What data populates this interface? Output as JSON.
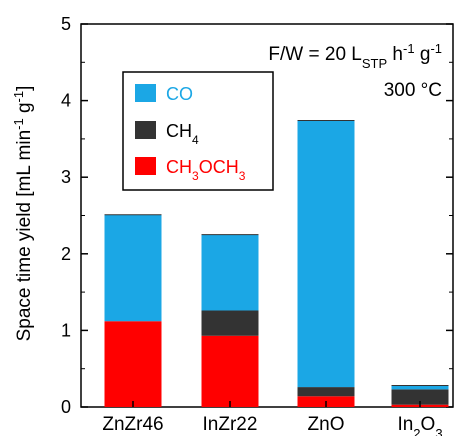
{
  "chart_data": {
    "type": "bar",
    "stacked": true,
    "categories": [
      "ZnZr46",
      "InZr22",
      "ZnO",
      "In2O3"
    ],
    "category_labels": [
      {
        "base": "ZnZr46",
        "sub": ""
      },
      {
        "base": "InZr22",
        "sub": ""
      },
      {
        "base": "ZnO",
        "sub": ""
      },
      {
        "base": "In",
        "sub": "2",
        "tail": "O",
        "sub2": "3"
      }
    ],
    "series": [
      {
        "name": "CH3OCH3",
        "color": "#ff0000",
        "values": [
          1.12,
          0.93,
          0.14,
          0.03
        ]
      },
      {
        "name": "CH4",
        "color": "#333333",
        "values": [
          0.0,
          0.33,
          0.12,
          0.2
        ]
      },
      {
        "name": "CO",
        "color": "#1ba7e5",
        "values": [
          1.39,
          0.99,
          3.48,
          0.05
        ]
      }
    ],
    "legend": {
      "position": "upper-left",
      "entries": [
        {
          "parts": [
            {
              "t": "CO"
            }
          ],
          "color": "#1ba7e5",
          "text_color": "#1ba7e5"
        },
        {
          "parts": [
            {
              "t": "CH"
            },
            {
              "t": "4",
              "sub": true
            }
          ],
          "color": "#333333",
          "text_color": "#000000"
        },
        {
          "parts": [
            {
              "t": "CH"
            },
            {
              "t": "3",
              "sub": true
            },
            {
              "t": "OCH"
            },
            {
              "t": "3",
              "sub": true
            }
          ],
          "color": "#ff0000",
          "text_color": "#ff0000"
        }
      ]
    },
    "ylabel": "Space time yield [mL min-1 g-1]",
    "ylabel_parts": [
      {
        "t": "Space time yield [mL min"
      },
      {
        "t": "-1",
        "sup": true
      },
      {
        "t": " g"
      },
      {
        "t": "-1",
        "sup": true
      },
      {
        "t": "]"
      }
    ],
    "xlabel": "",
    "ylim": [
      0,
      5
    ],
    "yticks": [
      0,
      1,
      2,
      3,
      4,
      5
    ],
    "annotations": [
      {
        "id": "condition-fw",
        "parts": [
          {
            "t": "F/W = 20 L"
          },
          {
            "t": "STP",
            "sub": true
          },
          {
            "t": " h"
          },
          {
            "t": "-1",
            "sup": true
          },
          {
            "t": " g"
          },
          {
            "t": "-1",
            "sup": true
          }
        ]
      },
      {
        "id": "condition-temp",
        "parts": [
          {
            "t": "300 °C"
          }
        ]
      }
    ],
    "grid": false
  }
}
